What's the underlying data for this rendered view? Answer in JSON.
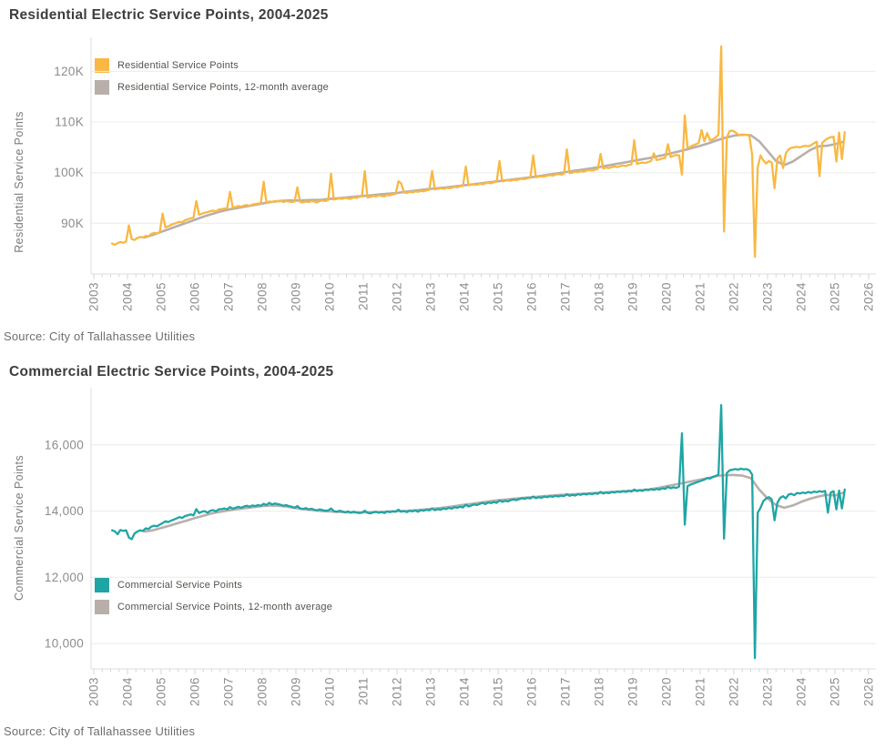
{
  "theme": {
    "background": "#ffffff",
    "grid_color": "#ececec",
    "axis_color": "#dedede",
    "tick_color": "#d6d6d6",
    "tick_label_color": "#8c8c8c",
    "title_color": "#3d3d3d",
    "legend_text_color": "#57524d",
    "source_text_color": "#6e6e6e",
    "residential_color": "#F9B843",
    "commercial_color": "#1FA5A5",
    "average_color": "#B8AFAB"
  },
  "chart_data": [
    {
      "type": "line",
      "title": "Residential Electric Service Points, 2004-2025",
      "ylabel": "Residential Service Points",
      "source": "Source: City of Tallahassee Utilities",
      "grid": "horizontal",
      "legend_position": "top-left-inside",
      "x_axis": {
        "min": 2003,
        "max": 2026,
        "ticks": [
          2003,
          2004,
          2005,
          2006,
          2007,
          2008,
          2009,
          2010,
          2011,
          2012,
          2013,
          2014,
          2015,
          2016,
          2017,
          2018,
          2019,
          2020,
          2021,
          2022,
          2023,
          2024,
          2025,
          2026
        ]
      },
      "y_axis": {
        "min": 80000,
        "max": 126000,
        "ticks": [
          {
            "value": 90000,
            "label": "90K"
          },
          {
            "value": 100000,
            "label": "100K"
          },
          {
            "value": 110000,
            "label": "110K"
          },
          {
            "value": 120000,
            "label": "120K"
          }
        ]
      },
      "series": [
        {
          "name": "Residential Service Points",
          "color": "#F9B843",
          "start": 2003.542,
          "step": 0.083333,
          "values": [
            86000,
            85750,
            86100,
            86300,
            86150,
            86400,
            89600,
            86900,
            86700,
            87100,
            87300,
            87200,
            87500,
            87400,
            87900,
            88100,
            88000,
            88300,
            91900,
            89200,
            89400,
            89700,
            89900,
            90100,
            90300,
            90200,
            90600,
            90800,
            91000,
            91100,
            94400,
            91700,
            91900,
            92100,
            92200,
            92400,
            92500,
            92300,
            92700,
            92800,
            92900,
            93000,
            96200,
            93100,
            93200,
            93400,
            93300,
            93500,
            93600,
            93400,
            93700,
            93800,
            93900,
            94000,
            98200,
            94100,
            94300,
            94200,
            94400,
            94300,
            94500,
            94200,
            94400,
            94300,
            94200,
            94300,
            97100,
            94200,
            94100,
            94300,
            94200,
            94400,
            94300,
            94100,
            94400,
            94500,
            94400,
            94600,
            99800,
            94700,
            94800,
            94900,
            94800,
            95000,
            94900,
            94800,
            95100,
            95000,
            95200,
            95300,
            100300,
            95100,
            95200,
            95400,
            95300,
            95500,
            95400,
            95300,
            95600,
            95500,
            95700,
            95800,
            98300,
            97900,
            96100,
            96000,
            96200,
            96100,
            96300,
            96200,
            96400,
            96300,
            96500,
            96600,
            100300,
            96700,
            96800,
            96900,
            96800,
            97000,
            96900,
            97000,
            97200,
            97100,
            97300,
            97400,
            101200,
            97500,
            97600,
            97700,
            97600,
            97800,
            97700,
            97900,
            98000,
            97900,
            98100,
            98200,
            102300,
            98300,
            98400,
            98500,
            98400,
            98600,
            98500,
            98700,
            98800,
            98700,
            98900,
            99000,
            103400,
            99100,
            99200,
            99300,
            99200,
            99400,
            99500,
            99400,
            99600,
            99700,
            99600,
            99800,
            104600,
            99900,
            100000,
            100200,
            100100,
            100300,
            100200,
            100400,
            100500,
            100400,
            100600,
            100700,
            103700,
            100800,
            101000,
            100900,
            101100,
            101200,
            101100,
            101300,
            101400,
            101300,
            101500,
            101600,
            106400,
            101700,
            101900,
            102000,
            101900,
            102100,
            102300,
            103800,
            102500,
            102600,
            102800,
            102900,
            105600,
            103100,
            103300,
            103500,
            103400,
            99600,
            111300,
            104900,
            105100,
            105400,
            105600,
            105900,
            108400,
            106200,
            107800,
            106400,
            106600,
            106900,
            107500,
            124900,
            88400,
            107000,
            108200,
            108300,
            108000,
            107500,
            107400,
            107400,
            107500,
            107300,
            103500,
            83400,
            101000,
            103400,
            102400,
            101800,
            102300,
            102000,
            96900,
            102800,
            103400,
            100900,
            103800,
            104600,
            104900,
            105000,
            105100,
            105000,
            105200,
            105300,
            105200,
            105400,
            105800,
            106100,
            99300,
            105900,
            106400,
            106800,
            107000,
            107100,
            102200,
            107900,
            102700,
            108000
          ]
        },
        {
          "name": "Residential Service Points, 12-month average",
          "color": "#B8AFAB",
          "start": 2004.5,
          "step": 0.25,
          "values": [
            87200,
            87700,
            88300,
            88900,
            89500,
            90100,
            90700,
            91300,
            91800,
            92300,
            92700,
            93000,
            93300,
            93600,
            93900,
            94200,
            94400,
            94500,
            94500,
            94550,
            94600,
            94650,
            94800,
            94950,
            95100,
            95250,
            95400,
            95550,
            95700,
            95850,
            96000,
            96200,
            96400,
            96600,
            96800,
            96950,
            97100,
            97300,
            97500,
            97700,
            97900,
            98100,
            98300,
            98500,
            98700,
            98900,
            99100,
            99350,
            99600,
            99850,
            100100,
            100350,
            100600,
            100850,
            101100,
            101400,
            101700,
            102000,
            102300,
            102600,
            102900,
            103250,
            103600,
            104000,
            104400,
            104850,
            105300,
            105800,
            106400,
            106900,
            107300,
            107500,
            107400,
            106200,
            104300,
            102300,
            101500,
            102200,
            103300,
            104400,
            105200,
            105300,
            105600,
            106100
          ]
        }
      ]
    },
    {
      "type": "line",
      "title": "Commercial Electric Service Points, 2004-2025",
      "ylabel": "Commercial Service Points",
      "source": "Source: City of Tallahassee Utilities",
      "grid": "horizontal",
      "legend_position": "middle-left-inside",
      "x_axis": {
        "min": 2003,
        "max": 2026,
        "ticks": [
          2003,
          2004,
          2005,
          2006,
          2007,
          2008,
          2009,
          2010,
          2011,
          2012,
          2013,
          2014,
          2015,
          2016,
          2017,
          2018,
          2019,
          2020,
          2021,
          2022,
          2023,
          2024,
          2025,
          2026
        ]
      },
      "y_axis": {
        "min": 9233,
        "max": 17616,
        "ticks": [
          {
            "value": 10000,
            "label": "10,000"
          },
          {
            "value": 12000,
            "label": "12,000"
          },
          {
            "value": 14000,
            "label": "14,000"
          },
          {
            "value": 16000,
            "label": "16,000"
          }
        ]
      },
      "series": [
        {
          "name": "Commercial Service Points",
          "color": "#1FA5A5",
          "start": 2003.542,
          "step": 0.083333,
          "values": [
            13420,
            13390,
            13300,
            13430,
            13400,
            13420,
            13200,
            13150,
            13320,
            13380,
            13420,
            13400,
            13480,
            13460,
            13530,
            13560,
            13540,
            13590,
            13640,
            13690,
            13670,
            13710,
            13740,
            13780,
            13820,
            13790,
            13850,
            13870,
            13900,
            13870,
            14060,
            13940,
            13980,
            14000,
            13950,
            14010,
            14030,
            13990,
            14050,
            14060,
            14080,
            14050,
            14120,
            14070,
            14100,
            14130,
            14100,
            14140,
            14160,
            14130,
            14170,
            14150,
            14180,
            14160,
            14220,
            14180,
            14250,
            14200,
            14230,
            14210,
            14190,
            14160,
            14180,
            14150,
            14130,
            14100,
            14150,
            14080,
            14060,
            14090,
            14050,
            14070,
            14040,
            14020,
            14050,
            14030,
            14010,
            14020,
            14080,
            14000,
            13980,
            14010,
            13990,
            13960,
            13990,
            13950,
            13980,
            13960,
            13940,
            13950,
            14010,
            13950,
            13930,
            13960,
            13980,
            13950,
            13970,
            13940,
            13990,
            13970,
            13990,
            13980,
            14040,
            13980,
            14000,
            13970,
            14010,
            13990,
            14020,
            13980,
            14030,
            14010,
            14040,
            14020,
            14080,
            14030,
            14060,
            14040,
            14080,
            14060,
            14100,
            14070,
            14120,
            14100,
            14130,
            14110,
            14190,
            14140,
            14170,
            14200,
            14180,
            14220,
            14250,
            14210,
            14260,
            14240,
            14270,
            14250,
            14320,
            14280,
            14310,
            14290,
            14330,
            14350,
            14330,
            14360,
            14390,
            14370,
            14400,
            14380,
            14440,
            14390,
            14420,
            14400,
            14440,
            14420,
            14450,
            14430,
            14460,
            14440,
            14470,
            14450,
            14510,
            14460,
            14490,
            14470,
            14510,
            14490,
            14520,
            14500,
            14530,
            14510,
            14540,
            14520,
            14580,
            14530,
            14560,
            14540,
            14580,
            14560,
            14590,
            14570,
            14600,
            14580,
            14610,
            14590,
            14650,
            14600,
            14630,
            14610,
            14650,
            14630,
            14660,
            14640,
            14670,
            14650,
            14690,
            14670,
            14730,
            14690,
            14720,
            14700,
            14740,
            16350,
            13590,
            14750,
            14800,
            14830,
            14860,
            14890,
            14920,
            14950,
            15000,
            14980,
            15030,
            15060,
            15100,
            17200,
            13170,
            15150,
            15230,
            15250,
            15270,
            15250,
            15280,
            15260,
            15270,
            15230,
            15100,
            9560,
            13950,
            14100,
            14300,
            14380,
            14420,
            14350,
            13720,
            14250,
            14400,
            14450,
            14380,
            14500,
            14520,
            14480,
            14550,
            14530,
            14560,
            14540,
            14580,
            14550,
            14590,
            14570,
            14600,
            14580,
            14610,
            13950,
            14560,
            14600,
            14050,
            14620,
            14080,
            14650
          ]
        },
        {
          "name": "Commercial Service Points, 12-month average",
          "color": "#B8AFAB",
          "start": 2004.5,
          "step": 0.25,
          "values": [
            13380,
            13420,
            13490,
            13560,
            13640,
            13710,
            13790,
            13860,
            13930,
            13980,
            14020,
            14060,
            14090,
            14120,
            14150,
            14170,
            14160,
            14130,
            14090,
            14060,
            14030,
            14000,
            13990,
            13975,
            13965,
            13960,
            13960,
            13965,
            13975,
            13985,
            13995,
            14005,
            14020,
            14040,
            14065,
            14090,
            14120,
            14155,
            14190,
            14225,
            14260,
            14295,
            14325,
            14350,
            14375,
            14400,
            14420,
            14440,
            14460,
            14480,
            14495,
            14510,
            14525,
            14540,
            14555,
            14570,
            14585,
            14600,
            14615,
            14635,
            14655,
            14700,
            14750,
            14800,
            14850,
            14900,
            14950,
            15000,
            15060,
            15090,
            15090,
            15070,
            15000,
            14650,
            14380,
            14180,
            14100,
            14170,
            14280,
            14370,
            14440,
            14490,
            14470,
            14560
          ]
        }
      ]
    }
  ]
}
